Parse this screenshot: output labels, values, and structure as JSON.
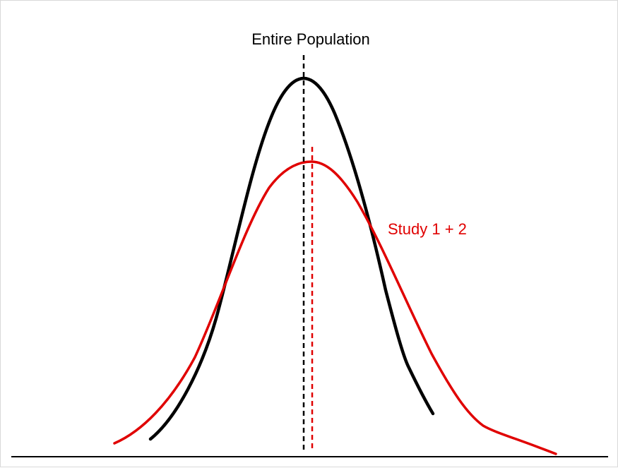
{
  "labels": {
    "entire_population": "Entire Population",
    "study": "Study 1 + 2"
  },
  "colors": {
    "population": "#000000",
    "study": "#e00000",
    "baseline": "#000000"
  }
}
